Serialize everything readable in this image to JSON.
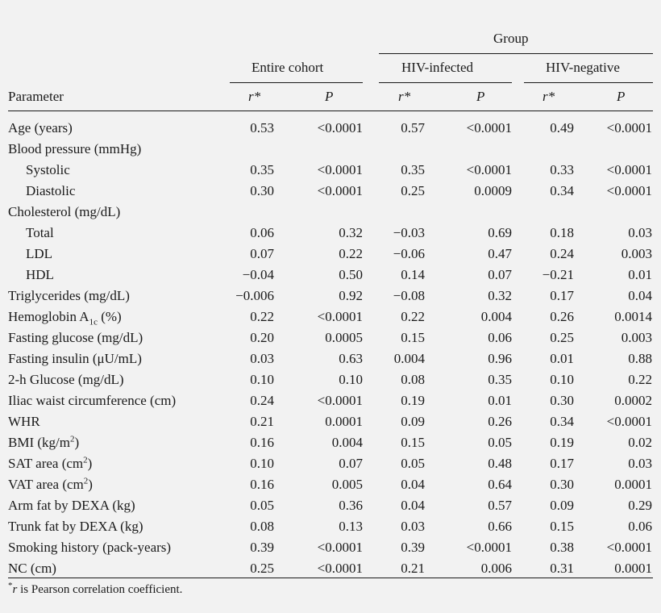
{
  "header": {
    "group": "Group",
    "entire_cohort": "Entire cohort",
    "hiv_infected": "HIV-infected",
    "hiv_negative": "HIV-negative",
    "parameter": "Parameter",
    "r_label": "r*",
    "p_label": "P"
  },
  "rows": [
    {
      "label": "Age (years)",
      "indent": false,
      "values": [
        "0.53",
        "<0.0001",
        "0.57",
        "<0.0001",
        "0.49",
        "<0.0001"
      ]
    },
    {
      "label": "Blood pressure (mmHg)",
      "indent": false,
      "values": []
    },
    {
      "label": "Systolic",
      "indent": true,
      "values": [
        "0.35",
        "<0.0001",
        "0.35",
        "<0.0001",
        "0.33",
        "<0.0001"
      ]
    },
    {
      "label": "Diastolic",
      "indent": true,
      "values": [
        "0.30",
        "<0.0001",
        "0.25",
        "0.0009",
        "0.34",
        "<0.0001"
      ]
    },
    {
      "label": "Cholesterol (mg/dL)",
      "indent": false,
      "values": []
    },
    {
      "label": "Total",
      "indent": true,
      "values": [
        "0.06",
        "0.32",
        "−0.03",
        "0.69",
        "0.18",
        "0.03"
      ]
    },
    {
      "label": "LDL",
      "indent": true,
      "values": [
        "0.07",
        "0.22",
        "−0.06",
        "0.47",
        "0.24",
        "0.003"
      ]
    },
    {
      "label": "HDL",
      "indent": true,
      "values": [
        "−0.04",
        "0.50",
        "0.14",
        "0.07",
        "−0.21",
        "0.01"
      ]
    },
    {
      "label": "Triglycerides (mg/dL)",
      "indent": false,
      "values": [
        "−0.006",
        "0.92",
        "−0.08",
        "0.32",
        "0.17",
        "0.04"
      ]
    },
    {
      "label": "Hemoglobin A",
      "sub": "1c",
      "label_after": " (%)",
      "indent": false,
      "values": [
        "0.22",
        "<0.0001",
        "0.22",
        "0.004",
        "0.26",
        "0.0014"
      ]
    },
    {
      "label": "Fasting glucose (mg/dL)",
      "indent": false,
      "values": [
        "0.20",
        "0.0005",
        "0.15",
        "0.06",
        "0.25",
        "0.003"
      ]
    },
    {
      "label": "Fasting insulin (μU/mL)",
      "indent": false,
      "values": [
        "0.03",
        "0.63",
        "0.004",
        "0.96",
        "0.01",
        "0.88"
      ]
    },
    {
      "label": "2-h Glucose (mg/dL)",
      "indent": false,
      "values": [
        "0.10",
        "0.10",
        "0.08",
        "0.35",
        "0.10",
        "0.22"
      ]
    },
    {
      "label": "Iliac waist circumference (cm)",
      "indent": false,
      "values": [
        "0.24",
        "<0.0001",
        "0.19",
        "0.01",
        "0.30",
        "0.0002"
      ]
    },
    {
      "label": "WHR",
      "indent": false,
      "values": [
        "0.21",
        "0.0001",
        "0.09",
        "0.26",
        "0.34",
        "<0.0001"
      ]
    },
    {
      "label": "BMI (kg/m",
      "sup": "2",
      "label_after": ")",
      "indent": false,
      "values": [
        "0.16",
        "0.004",
        "0.15",
        "0.05",
        "0.19",
        "0.02"
      ]
    },
    {
      "label": "SAT area (cm",
      "sup": "2",
      "label_after": ")",
      "indent": false,
      "values": [
        "0.10",
        "0.07",
        "0.05",
        "0.48",
        "0.17",
        "0.03"
      ]
    },
    {
      "label": "VAT area (cm",
      "sup": "2",
      "label_after": ")",
      "indent": false,
      "values": [
        "0.16",
        "0.005",
        "0.04",
        "0.64",
        "0.30",
        "0.0001"
      ]
    },
    {
      "label": "Arm fat by DEXA (kg)",
      "indent": false,
      "values": [
        "0.05",
        "0.36",
        "0.04",
        "0.57",
        "0.09",
        "0.29"
      ]
    },
    {
      "label": "Trunk fat by DEXA (kg)",
      "indent": false,
      "values": [
        "0.08",
        "0.13",
        "0.03",
        "0.66",
        "0.15",
        "0.06"
      ]
    },
    {
      "label": "Smoking history (pack-years)",
      "indent": false,
      "values": [
        "0.39",
        "<0.0001",
        "0.39",
        "<0.0001",
        "0.38",
        "<0.0001"
      ]
    },
    {
      "label": "NC (cm)",
      "indent": false,
      "values": [
        "0.25",
        "<0.0001",
        "0.21",
        "0.006",
        "0.31",
        "0.0001"
      ]
    }
  ],
  "footnote": {
    "r_symbol": "r",
    "text": "is Pearson correlation coefficient."
  }
}
